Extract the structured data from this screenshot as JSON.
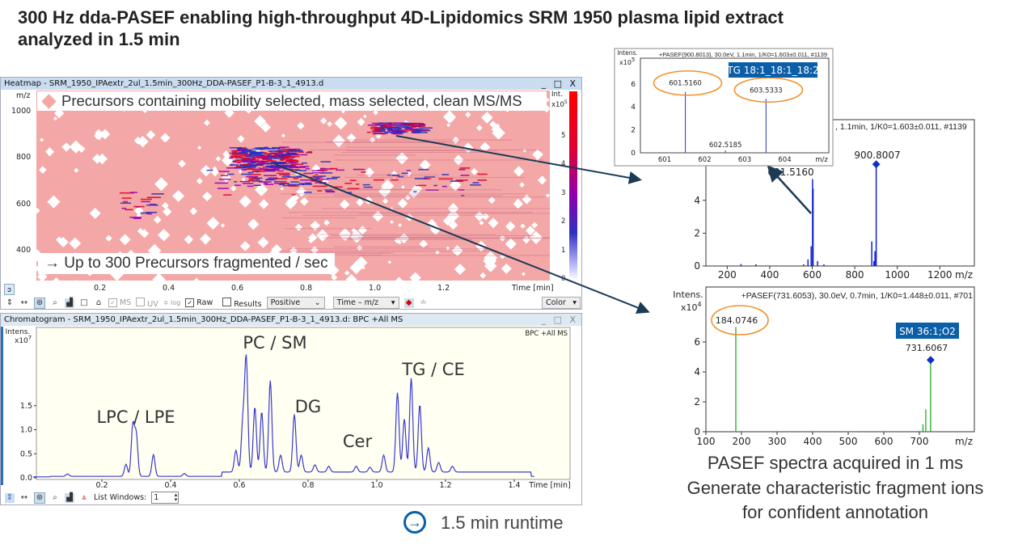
{
  "slide_title": "300 Hz dda-PASEF enabling high-throughput 4D-Lipidomics SRM 1950 plasma lipid extract analyzed in 1.5 min",
  "heatmap": {
    "window_title": "Heatmap - SRM_1950_IPAextr_2ul_1.5min_300Hz_DDA-PASEF_P1-B-3_1_4913.d",
    "window_buttons": "_ □ X",
    "y_label": "m/z",
    "y_ticks": [
      "1000",
      "800",
      "600",
      "400"
    ],
    "x_ticks": [
      "0.2",
      "0.4",
      "0.6",
      "0.8",
      "1.0",
      "1.2"
    ],
    "x_label": "Time [min]",
    "colorbar_label": "Int.",
    "colorbar_exp": "x10",
    "colorbar_exp_power": "5",
    "colorbar_ticks": [
      "0",
      "1",
      "2",
      "3",
      "4",
      "5"
    ],
    "legend_text": "Precursors containing mobility selected, mass selected, clean MS/MS",
    "rate_text": "→ Up to 300 Precursors fragmented / sec",
    "colors": {
      "precursor": "#f4a7a7",
      "high": "#e00020",
      "mid": "#9000b0",
      "low": "#2030c0"
    }
  },
  "heatmap_toolbar": {
    "ms_label": "MS",
    "uv_label": "UV",
    "log_label": "log",
    "raw_label": "Raw",
    "raw_checked": true,
    "results_label": "Results",
    "results_checked": false,
    "polarity": "Positive",
    "view_mode": "Time – m/z",
    "color_label": "Color"
  },
  "chromatogram": {
    "window_title": "Chromatogram - SRM_1950_IPAextr_2ul_1.5min_300Hz_DDA-PASEF_P1-B-3_1_4913.d: BPC +All MS",
    "window_buttons": "_ □ X",
    "trace_label": "BPC +All MS",
    "y_label": "Intens.",
    "y_exp": "x10",
    "y_exp_power": "7",
    "y_ticks": [
      "0.0",
      "0.5",
      "1.0",
      "1.5"
    ],
    "x_ticks": [
      "0.2",
      "0.4",
      "0.6",
      "0.8",
      "1.0",
      "1.2",
      "1.4"
    ],
    "x_label": "Time [min]",
    "class_labels": [
      "LPC / LPE",
      "PC / SM",
      "DG",
      "Cer",
      "TG / CE"
    ],
    "line_color": "#3a3ad0",
    "peaks_min_intensity_e7": [
      [
        0.1,
        0.05
      ],
      [
        0.27,
        0.25
      ],
      [
        0.29,
        1.05
      ],
      [
        0.3,
        0.85
      ],
      [
        0.35,
        0.45
      ],
      [
        0.44,
        0.06
      ],
      [
        0.59,
        0.45
      ],
      [
        0.61,
        1.0
      ],
      [
        0.62,
        2.35
      ],
      [
        0.645,
        1.35
      ],
      [
        0.665,
        1.25
      ],
      [
        0.69,
        1.9
      ],
      [
        0.72,
        0.35
      ],
      [
        0.76,
        1.2
      ],
      [
        0.78,
        0.35
      ],
      [
        0.82,
        0.15
      ],
      [
        0.86,
        0.12
      ],
      [
        0.94,
        0.12
      ],
      [
        0.98,
        0.1
      ],
      [
        1.02,
        0.35
      ],
      [
        1.06,
        1.65
      ],
      [
        1.08,
        1.1
      ],
      [
        1.1,
        1.95
      ],
      [
        1.125,
        1.4
      ],
      [
        1.15,
        0.5
      ],
      [
        1.18,
        0.2
      ],
      [
        1.22,
        0.12
      ]
    ]
  },
  "chromatogram_toolbar": {
    "list_windows_label": "List Windows:",
    "list_windows_value": "1"
  },
  "inset_spectrum": {
    "header": "+PASEF(900.8013), 30.0eV, 1.1min, 1/K0=1.603±0.011, #1139",
    "y_label": "Intens.",
    "y_exp": "x10",
    "y_exp_power": "5",
    "y_ticks": [
      "0",
      "2",
      "4",
      "6"
    ],
    "x_ticks": [
      "601",
      "602",
      "603",
      "604"
    ],
    "x_label": "m/z",
    "annotation": "TG 18:1_18:1_18:2",
    "peaks": [
      {
        "mz": 601.516,
        "i": 5.3,
        "label": "601.5160",
        "circled": true
      },
      {
        "mz": 602.5185,
        "i": 0.2,
        "label": "602.5185",
        "circled": false
      },
      {
        "mz": 603.5333,
        "i": 4.7,
        "label": "603.5333",
        "circled": true
      }
    ],
    "peak_color": "#5050d0"
  },
  "ms1_spectrum": {
    "header_partial": ", 1.1min, 1/K0=1.603±0.011, #1139",
    "y_ticks": [
      "0",
      "2",
      "4"
    ],
    "x_ticks": [
      "200",
      "400",
      "600",
      "800",
      "1000",
      "1200"
    ],
    "x_label": "m/z",
    "precursor_label": "900.8007",
    "fragment_label": "601.5160",
    "peaks": [
      [
        265,
        0.12
      ],
      [
        335,
        0.1
      ],
      [
        560,
        0.1
      ],
      [
        580,
        0.4
      ],
      [
        595,
        1.2
      ],
      [
        601.5,
        5.3
      ],
      [
        604,
        4.7
      ],
      [
        625,
        0.3
      ],
      [
        655,
        0.1
      ],
      [
        880,
        1.5
      ],
      [
        890,
        0.3
      ],
      [
        895,
        0.9
      ],
      [
        900.8,
        6.2
      ]
    ],
    "peak_color": "#1020d0"
  },
  "msms_spectrum": {
    "header": "+PASEF(731.6053), 30.0eV, 0.7min, 1/K0=1.448±0.011, #701",
    "y_label": "Intens.",
    "y_exp": "x10",
    "y_exp_power": "4",
    "y_ticks": [
      "0",
      "2",
      "4",
      "6"
    ],
    "x_ticks": [
      "100",
      "200",
      "300",
      "400",
      "500",
      "600",
      "700"
    ],
    "x_label": "m/z",
    "annotation": "SM 36:1;O2",
    "fragment_label": "184.0746",
    "precursor_label": "731.6067",
    "peaks": [
      [
        184.07,
        7.0
      ],
      [
        710,
        0.5
      ],
      [
        718,
        1.5
      ],
      [
        731.6,
        4.8
      ]
    ],
    "peak_color": "#30b030"
  },
  "runtime_text": "1.5 min runtime",
  "callout_lines": [
    "PASEF spectra acquired in 1 ms",
    "Generate characteristic fragment ions",
    "for confident annotation"
  ],
  "colors": {
    "annotation_box": "#0b5fa8",
    "circle": "#f0922a",
    "arrow": "#1a3a56"
  }
}
